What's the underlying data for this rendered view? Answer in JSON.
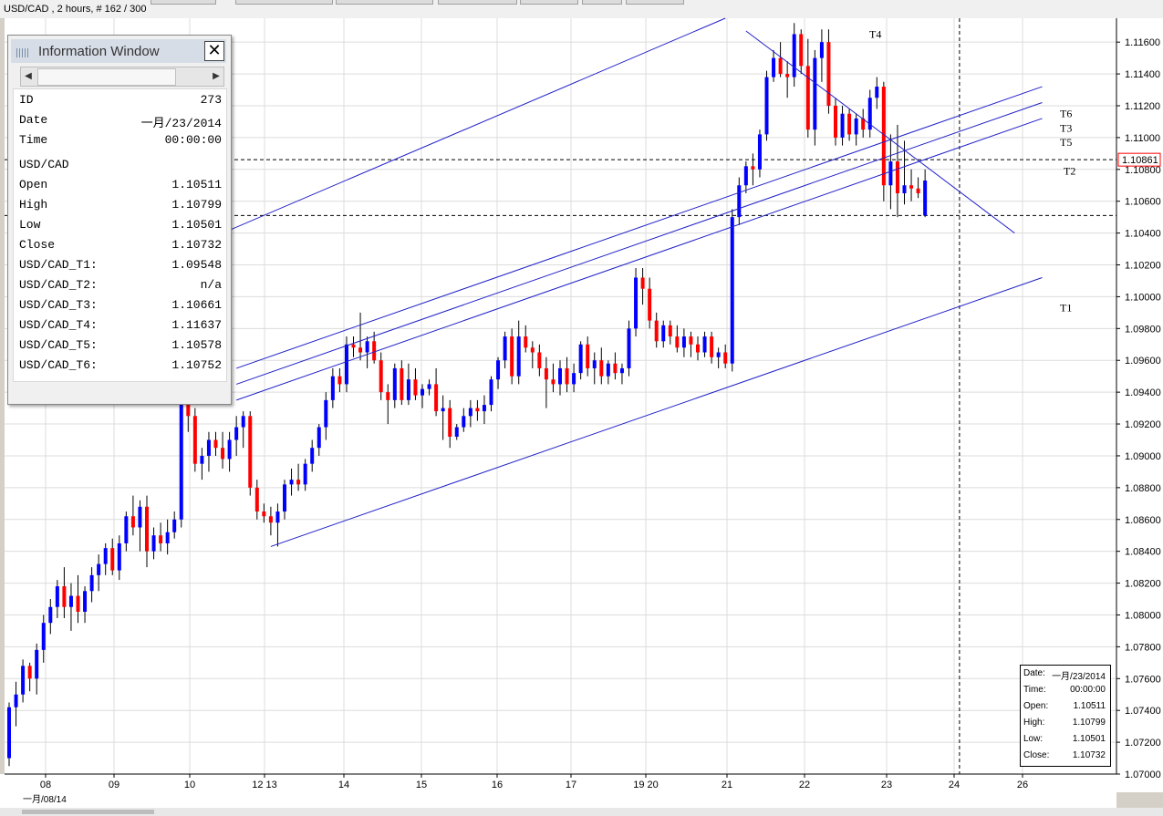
{
  "title": "USD/CAD , 2 hours, # 162 / 300",
  "chart_data": {
    "type": "candlestick",
    "symbol": "USD/CAD",
    "timeframe": "2 hours",
    "ylim": [
      1.07,
      1.1175
    ],
    "y_ticks": [
      "1.11600",
      "1.11400",
      "1.11200",
      "1.11000",
      "1.10800",
      "1.10600",
      "1.10400",
      "1.10200",
      "1.10000",
      "1.09800",
      "1.09600",
      "1.09400",
      "1.09200",
      "1.09000",
      "1.08800",
      "1.08600",
      "1.08400",
      "1.08200",
      "1.08000",
      "1.07800",
      "1.07600",
      "1.07400",
      "1.07200",
      "1.07000"
    ],
    "x_ticks": [
      "08",
      "09",
      "10",
      "12 13",
      "14",
      "15",
      "16",
      "17",
      "19 20",
      "21",
      "22",
      "23",
      "24",
      "26"
    ],
    "x_sublabel": "一月/08/14",
    "current_price": "1.10861",
    "grid": true,
    "candles": [
      [
        1.071,
        1.0745,
        1.0705,
        1.0742
      ],
      [
        1.0742,
        1.0758,
        1.073,
        1.075
      ],
      [
        1.075,
        1.0772,
        1.0745,
        1.0768
      ],
      [
        1.0768,
        1.077,
        1.0752,
        1.076
      ],
      [
        1.076,
        1.0782,
        1.075,
        1.0778
      ],
      [
        1.0778,
        1.08,
        1.077,
        1.0795
      ],
      [
        1.0795,
        1.081,
        1.0788,
        1.0805
      ],
      [
        1.0805,
        1.0822,
        1.0798,
        1.0818
      ],
      [
        1.0818,
        1.083,
        1.0798,
        1.0805
      ],
      [
        1.0805,
        1.082,
        1.079,
        1.0812
      ],
      [
        1.0812,
        1.0825,
        1.0795,
        1.0802
      ],
      [
        1.0802,
        1.0818,
        1.0795,
        1.0815
      ],
      [
        1.0815,
        1.083,
        1.0808,
        1.0825
      ],
      [
        1.0825,
        1.0838,
        1.0815,
        1.0832
      ],
      [
        1.0832,
        1.0845,
        1.0825,
        1.0842
      ],
      [
        1.0842,
        1.0848,
        1.0825,
        1.0828
      ],
      [
        1.0828,
        1.085,
        1.0822,
        1.0845
      ],
      [
        1.0845,
        1.0865,
        1.084,
        1.0862
      ],
      [
        1.0862,
        1.0875,
        1.085,
        1.0855
      ],
      [
        1.0855,
        1.0872,
        1.084,
        1.0868
      ],
      [
        1.0868,
        1.0875,
        1.083,
        1.084
      ],
      [
        1.084,
        1.0855,
        1.0835,
        1.085
      ],
      [
        1.085,
        1.0858,
        1.084,
        1.0845
      ],
      [
        1.0845,
        1.086,
        1.0838,
        1.0852
      ],
      [
        1.0852,
        1.0865,
        1.0848,
        1.086
      ],
      [
        1.086,
        1.0945,
        1.0855,
        1.0935
      ],
      [
        1.0935,
        1.0945,
        1.0915,
        1.0925
      ],
      [
        1.0925,
        1.093,
        1.089,
        1.0895
      ],
      [
        1.0895,
        1.0905,
        1.0885,
        1.09
      ],
      [
        1.09,
        1.0915,
        1.089,
        1.091
      ],
      [
        1.091,
        1.0915,
        1.09,
        1.0905
      ],
      [
        1.0905,
        1.0915,
        1.0892,
        1.0898
      ],
      [
        1.0898,
        1.0915,
        1.089,
        1.091
      ],
      [
        1.091,
        1.0925,
        1.09,
        1.0918
      ],
      [
        1.0918,
        1.0928,
        1.0905,
        1.0925
      ],
      [
        1.0925,
        1.0928,
        1.0875,
        1.088
      ],
      [
        1.088,
        1.0885,
        1.086,
        1.0865
      ],
      [
        1.0865,
        1.087,
        1.0858,
        1.0862
      ],
      [
        1.0862,
        1.0868,
        1.085,
        1.0858
      ],
      [
        1.0858,
        1.087,
        1.0843,
        1.0865
      ],
      [
        1.0865,
        1.0885,
        1.086,
        1.0882
      ],
      [
        1.0882,
        1.0892,
        1.0875,
        1.0885
      ],
      [
        1.0885,
        1.0895,
        1.0878,
        1.0882
      ],
      [
        1.0882,
        1.0898,
        1.0878,
        1.0895
      ],
      [
        1.0895,
        1.091,
        1.089,
        1.0905
      ],
      [
        1.0905,
        1.092,
        1.09,
        1.0918
      ],
      [
        1.0918,
        1.094,
        1.091,
        1.0935
      ],
      [
        1.0935,
        1.0955,
        1.093,
        1.095
      ],
      [
        1.095,
        1.0955,
        1.094,
        1.0945
      ],
      [
        1.0945,
        1.0975,
        1.094,
        1.097
      ],
      [
        1.097,
        1.0975,
        1.0962,
        1.0968
      ],
      [
        1.0968,
        1.099,
        1.096,
        1.0965
      ],
      [
        1.0965,
        1.0975,
        1.0955,
        1.0972
      ],
      [
        1.0972,
        1.0978,
        1.0958,
        1.096
      ],
      [
        1.096,
        1.0965,
        1.0935,
        1.094
      ],
      [
        1.094,
        1.0945,
        1.092,
        1.0935
      ],
      [
        1.0935,
        1.0958,
        1.093,
        1.0955
      ],
      [
        1.0955,
        1.096,
        1.0932,
        1.0935
      ],
      [
        1.0935,
        1.0958,
        1.0932,
        1.0948
      ],
      [
        1.0948,
        1.0955,
        1.0935,
        1.0938
      ],
      [
        1.0938,
        1.0945,
        1.093,
        1.0942
      ],
      [
        1.0942,
        1.0948,
        1.0938,
        1.0945
      ],
      [
        1.0945,
        1.0955,
        1.0925,
        1.0928
      ],
      [
        1.0928,
        1.0938,
        1.091,
        1.093
      ],
      [
        1.093,
        1.0935,
        1.0905,
        1.0912
      ],
      [
        1.0912,
        1.092,
        1.091,
        1.0918
      ],
      [
        1.0918,
        1.093,
        1.0915,
        1.0925
      ],
      [
        1.0925,
        1.0935,
        1.0918,
        1.093
      ],
      [
        1.093,
        1.0935,
        1.0922,
        1.0928
      ],
      [
        1.0928,
        1.0938,
        1.092,
        1.0932
      ],
      [
        1.0932,
        1.095,
        1.0928,
        1.0948
      ],
      [
        1.0948,
        1.0962,
        1.0942,
        1.096
      ],
      [
        1.096,
        1.0978,
        1.0955,
        1.0975
      ],
      [
        1.0975,
        1.098,
        1.0945,
        1.095
      ],
      [
        1.095,
        1.0985,
        1.0945,
        1.0975
      ],
      [
        1.0975,
        1.0982,
        1.0965,
        1.0968
      ],
      [
        1.0968,
        1.0972,
        1.0955,
        1.0965
      ],
      [
        1.0965,
        1.097,
        1.095,
        1.0955
      ],
      [
        1.0955,
        1.0962,
        1.093,
        1.0948
      ],
      [
        1.0948,
        1.0958,
        1.094,
        1.0945
      ],
      [
        1.0945,
        1.096,
        1.0938,
        1.0955
      ],
      [
        1.0955,
        1.0962,
        1.094,
        1.0945
      ],
      [
        1.0945,
        1.0958,
        1.094,
        1.0952
      ],
      [
        1.0952,
        1.0972,
        1.0948,
        1.097
      ],
      [
        1.097,
        1.0975,
        1.095,
        1.0955
      ],
      [
        1.0955,
        1.0965,
        1.0945,
        1.096
      ],
      [
        1.096,
        1.0968,
        1.0945,
        1.095
      ],
      [
        1.095,
        1.096,
        1.0945,
        1.0958
      ],
      [
        1.0958,
        1.0965,
        1.0948,
        1.0952
      ],
      [
        1.0952,
        1.0958,
        1.0945,
        1.0955
      ],
      [
        1.0955,
        1.0985,
        1.095,
        1.098
      ],
      [
        1.098,
        1.1018,
        1.0975,
        1.1012
      ],
      [
        1.1012,
        1.1018,
        1.0995,
        1.1005
      ],
      [
        1.1005,
        1.1012,
        1.098,
        1.0985
      ],
      [
        1.0985,
        1.099,
        1.0968,
        1.0972
      ],
      [
        1.0972,
        1.0985,
        1.0968,
        1.0982
      ],
      [
        1.0982,
        1.0985,
        1.097,
        1.0975
      ],
      [
        1.0975,
        1.0982,
        1.0965,
        1.0968
      ],
      [
        1.0968,
        1.098,
        1.0962,
        1.0975
      ],
      [
        1.0975,
        1.0978,
        1.0962,
        1.097
      ],
      [
        1.097,
        1.0975,
        1.096,
        1.0965
      ],
      [
        1.0965,
        1.0978,
        1.0962,
        1.0975
      ],
      [
        1.0975,
        1.0978,
        1.0958,
        1.0962
      ],
      [
        1.0962,
        1.0968,
        1.0955,
        1.0965
      ],
      [
        1.0965,
        1.097,
        1.0955,
        1.0958
      ],
      [
        1.0958,
        1.1055,
        1.0953,
        1.105
      ],
      [
        1.105,
        1.1075,
        1.1045,
        1.107
      ],
      [
        1.107,
        1.1085,
        1.1065,
        1.1082
      ],
      [
        1.1082,
        1.109,
        1.107,
        1.108
      ],
      [
        1.108,
        1.1105,
        1.1075,
        1.1102
      ],
      [
        1.1102,
        1.1142,
        1.1098,
        1.1138
      ],
      [
        1.1138,
        1.1155,
        1.1135,
        1.115
      ],
      [
        1.115,
        1.116,
        1.1138,
        1.114
      ],
      [
        1.114,
        1.1148,
        1.1125,
        1.1138
      ],
      [
        1.1138,
        1.1172,
        1.1132,
        1.1165
      ],
      [
        1.1165,
        1.1168,
        1.114,
        1.1145
      ],
      [
        1.1145,
        1.1162,
        1.11,
        1.1105
      ],
      [
        1.1105,
        1.1155,
        1.1095,
        1.115
      ],
      [
        1.115,
        1.1168,
        1.1135,
        1.116
      ],
      [
        1.116,
        1.1168,
        1.1115,
        1.112
      ],
      [
        1.112,
        1.1125,
        1.1095,
        1.11
      ],
      [
        1.11,
        1.112,
        1.1095,
        1.1115
      ],
      [
        1.1115,
        1.1118,
        1.1098,
        1.1102
      ],
      [
        1.1102,
        1.1115,
        1.1095,
        1.1112
      ],
      [
        1.1112,
        1.1118,
        1.11,
        1.1105
      ],
      [
        1.1105,
        1.113,
        1.11,
        1.1125
      ],
      [
        1.1125,
        1.1138,
        1.1118,
        1.1132
      ],
      [
        1.1132,
        1.1135,
        1.106,
        1.107
      ],
      [
        1.107,
        1.1102,
        1.1055,
        1.1085
      ],
      [
        1.1085,
        1.1108,
        1.105,
        1.1065
      ],
      [
        1.1065,
        1.1098,
        1.1058,
        1.107
      ],
      [
        1.107,
        1.108,
        1.106,
        1.1068
      ],
      [
        1.1068,
        1.1075,
        1.1062,
        1.1065
      ],
      [
        1.1051,
        1.108,
        1.105,
        1.1073
      ]
    ],
    "lines": [
      {
        "name": "T1",
        "x1": 1.0843,
        "x1_index": 38,
        "x2_index": 150,
        "y1": 1.0843,
        "y2": 1.1012
      },
      {
        "name": "T2",
        "x1_index": 107,
        "x2_index": 146,
        "y1": 1.1167,
        "y2": 1.104
      },
      {
        "name": "T3",
        "x1_index": 33,
        "x2_index": 150,
        "y1": 1.0945,
        "y2": 1.1122
      },
      {
        "name": "T4",
        "x1_index": 31,
        "x2_index": 104,
        "y1": 1.104,
        "y2": 1.1175
      },
      {
        "name": "T5",
        "x1_index": 33,
        "x2_index": 150,
        "y1": 1.0935,
        "y2": 1.1112
      },
      {
        "name": "T6",
        "x1_index": 33,
        "x2_index": 150,
        "y1": 1.0955,
        "y2": 1.1132
      }
    ],
    "line_labels": [
      {
        "text": "T4",
        "price": 1.1165
      },
      {
        "text": "T6",
        "price": 1.1115
      },
      {
        "text": "T3",
        "price": 1.1106
      },
      {
        "text": "T5",
        "price": 1.1097
      },
      {
        "text": "T2",
        "price": 1.1079
      },
      {
        "text": "T1",
        "price": 1.0993
      }
    ],
    "hlines": [
      1.10861,
      1.1051
    ],
    "vline_index": 138
  },
  "info_window": {
    "title": "Information Window",
    "rows": [
      {
        "k": "ID",
        "v": "273"
      },
      {
        "k": "Date",
        "v": "一月/23/2014"
      },
      {
        "k": "Time",
        "v": "00:00:00"
      },
      {
        "k": "USD/CAD",
        "v": ""
      },
      {
        "k": "Open",
        "v": "1.10511"
      },
      {
        "k": "High",
        "v": "1.10799"
      },
      {
        "k": "Low",
        "v": "1.10501"
      },
      {
        "k": "Close",
        "v": "1.10732"
      },
      {
        "k": "USD/CAD_T1:",
        "v": "1.09548"
      },
      {
        "k": "USD/CAD_T2:",
        "v": "n/a"
      },
      {
        "k": "USD/CAD_T3:",
        "v": "1.10661"
      },
      {
        "k": "USD/CAD_T4:",
        "v": "1.11637"
      },
      {
        "k": "USD/CAD_T5:",
        "v": "1.10578"
      },
      {
        "k": "USD/CAD_T6:",
        "v": "1.10752"
      }
    ]
  },
  "data_box": {
    "rows": [
      {
        "k": "Date:",
        "v": "一月/23/2014"
      },
      {
        "k": "Time:",
        "v": "00:00:00"
      },
      {
        "k": "Open:",
        "v": "1.10511"
      },
      {
        "k": "High:",
        "v": "1.10799"
      },
      {
        "k": "Low:",
        "v": "1.10501"
      },
      {
        "k": "Close:",
        "v": "1.10732"
      }
    ]
  },
  "colors": {
    "up": "#0000ff",
    "down": "#ff0000",
    "grid": "#d8d8d8",
    "line": "#2020c8"
  }
}
